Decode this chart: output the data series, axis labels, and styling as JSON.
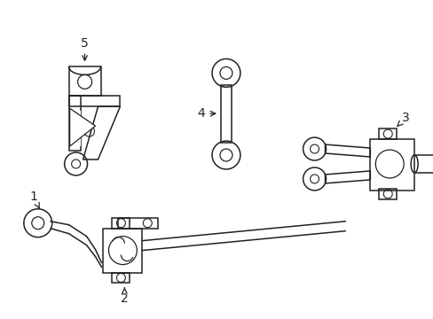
{
  "background_color": "#ffffff",
  "line_color": "#222222",
  "figsize": [
    4.89,
    3.6
  ],
  "dpi": 100
}
